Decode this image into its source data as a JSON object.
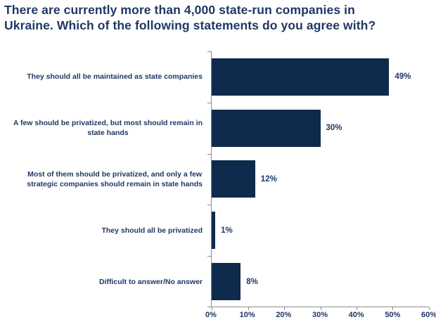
{
  "title": "There are currently more than 4,000 state-run companies in\nUkraine. Which of the following statements do you agree with?",
  "chart_data": {
    "type": "bar",
    "orientation": "horizontal",
    "title": "There are currently more than 4,000 state-run companies in Ukraine. Which of the following statements do you agree with?",
    "categories": [
      "They should all be maintained as state companies",
      "A few should be privatized, but most should remain in state hands",
      "Most of them should be privatized, and only a few strategic companies should remain in state hands",
      "They should all be privatized",
      "Difficult to answer/No answer"
    ],
    "values": [
      49,
      30,
      12,
      1,
      8
    ],
    "xlim": [
      0,
      60
    ],
    "x_ticks": [
      "0%",
      "10%",
      "20%",
      "30%",
      "40%",
      "50%",
      "60%"
    ],
    "grid": "off",
    "legend": "none",
    "rows": [
      {
        "label": "They should all be maintained as state companies",
        "value": 49,
        "value_label": "49%"
      },
      {
        "label": "A few should be privatized, but most should remain in\nstate hands",
        "value": 30,
        "value_label": "30%"
      },
      {
        "label": "Most of them should be privatized, and only a few\nstrategic companies should remain in state hands",
        "value": 12,
        "value_label": "12%"
      },
      {
        "label": "They should all be privatized",
        "value": 1,
        "value_label": "1%"
      },
      {
        "label": "Difficult to answer/No answer",
        "value": 8,
        "value_label": "8%"
      }
    ],
    "colors": {
      "bar": "#0e2a4c",
      "text": "#1f3864",
      "axis": "#8c8c8c",
      "background": "#ffffff"
    }
  }
}
